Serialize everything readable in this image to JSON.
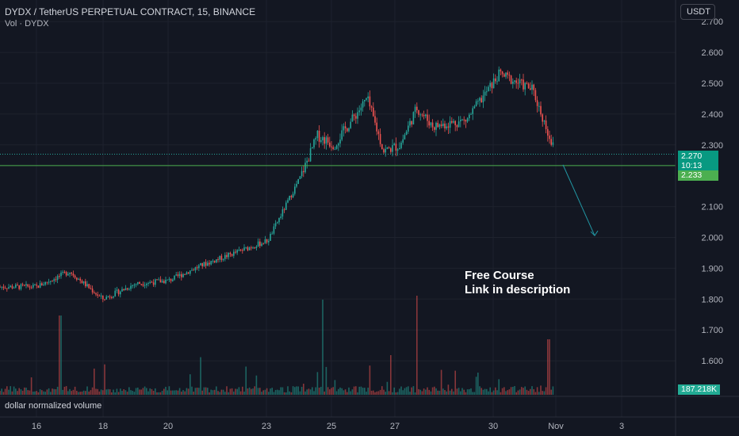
{
  "header": {
    "title": "DYDX / TetherUS PERPETUAL CONTRACT, 15, BINANCE",
    "volume_label": "Vol · DYDX",
    "currency_button": "USDT"
  },
  "annotation": {
    "line1": "Free Course",
    "line2": "Link in description"
  },
  "volume_pane": {
    "label": "dollar normalized volume",
    "last_value": "187.218K"
  },
  "price_tags": {
    "last_price": "2.270",
    "countdown": "10:13",
    "horizontal_line": "2.233"
  },
  "colors": {
    "background": "#131722",
    "up": "#26a69a",
    "down": "#ef5350",
    "horizontal_line": "#4caf50",
    "arrow": "#2196a3"
  },
  "chart_data": {
    "type": "candlestick",
    "title": "DYDX / TetherUS PERPETUAL CONTRACT, 15, BINANCE",
    "y_axis": {
      "ticks": [
        2.7,
        2.6,
        2.5,
        2.4,
        2.3,
        2.1,
        2.0,
        1.9,
        1.8,
        1.7,
        1.6
      ],
      "tick_labels": [
        "2.700",
        "2.600",
        "2.500",
        "2.400",
        "2.300",
        "2.100",
        "2.000",
        "1.900",
        "1.800",
        "1.700",
        "1.600"
      ]
    },
    "x_axis": {
      "tick_labels": [
        "16",
        "18",
        "20",
        "23",
        "25",
        "27",
        "30",
        "Nov",
        "3"
      ]
    },
    "price_path": [
      {
        "t": "16",
        "price": 1.84
      },
      {
        "t": "17",
        "price": 1.89
      },
      {
        "t": "18",
        "price": 1.8
      },
      {
        "t": "19",
        "price": 1.85
      },
      {
        "t": "20",
        "price": 1.86
      },
      {
        "t": "21",
        "price": 1.91
      },
      {
        "t": "22",
        "price": 1.95
      },
      {
        "t": "23",
        "price": 1.99
      },
      {
        "t": "24",
        "price": 2.2
      },
      {
        "t": "24.5",
        "price": 2.33
      },
      {
        "t": "25",
        "price": 2.3
      },
      {
        "t": "26",
        "price": 2.45
      },
      {
        "t": "26.5",
        "price": 2.28
      },
      {
        "t": "27",
        "price": 2.3
      },
      {
        "t": "27.5",
        "price": 2.42
      },
      {
        "t": "28",
        "price": 2.36
      },
      {
        "t": "29",
        "price": 2.38
      },
      {
        "t": "30",
        "price": 2.53
      },
      {
        "t": "31",
        "price": 2.48
      },
      {
        "t": "Nov",
        "price": 2.27
      }
    ],
    "last_price": 2.27,
    "horizontal_line": 2.233,
    "projection_target": 1.97,
    "volume_last": "187.218K"
  }
}
